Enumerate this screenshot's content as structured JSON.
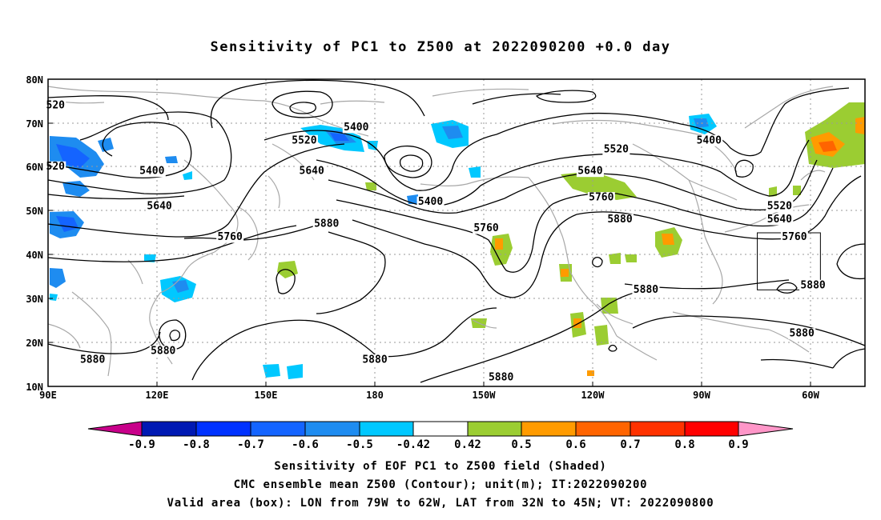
{
  "title": "Sensitivity of PC1 to Z500 at 2022090200 +0.0 day",
  "map": {
    "lat_labels": [
      "80N",
      "70N",
      "60N",
      "50N",
      "40N",
      "30N",
      "20N",
      "10N"
    ],
    "lon_labels": [
      "90E",
      "120E",
      "150E",
      "180",
      "150W",
      "120W",
      "90W",
      "60W"
    ],
    "contour_labels": [
      {
        "text": "520",
        "lon": 92,
        "lat": 74
      },
      {
        "text": "520",
        "lon": 92,
        "lat": 60
      },
      {
        "text": "5400",
        "lon": 118,
        "lat": 59
      },
      {
        "text": "5640",
        "lon": 120,
        "lat": 51
      },
      {
        "text": "5760",
        "lon": 139,
        "lat": 44
      },
      {
        "text": "5880",
        "lon": 121,
        "lat": 18
      },
      {
        "text": "5880",
        "lon": 102,
        "lat": 16
      },
      {
        "text": "5400",
        "lon": 173,
        "lat": 69
      },
      {
        "text": "5520",
        "lon": 159,
        "lat": 66
      },
      {
        "text": "5640",
        "lon": 161,
        "lat": 59
      },
      {
        "text": "5880",
        "lon": 165,
        "lat": 47
      },
      {
        "text": "5880",
        "lon": 178,
        "lat": 16
      },
      {
        "text": "5400",
        "lon": 193,
        "lat": 52
      },
      {
        "text": "5760",
        "lon": 208,
        "lat": 46
      },
      {
        "text": "5880",
        "lon": 212,
        "lat": 12
      },
      {
        "text": "5520",
        "lon": 243,
        "lat": 64
      },
      {
        "text": "5640",
        "lon": 236,
        "lat": 59
      },
      {
        "text": "5760",
        "lon": 239,
        "lat": 53
      },
      {
        "text": "5880",
        "lon": 244,
        "lat": 48
      },
      {
        "text": "5880",
        "lon": 251,
        "lat": 32
      },
      {
        "text": "5400",
        "lon": 268,
        "lat": 66
      },
      {
        "text": "5520",
        "lon": 287,
        "lat": 51
      },
      {
        "text": "5640",
        "lon": 287,
        "lat": 48
      },
      {
        "text": "5760",
        "lon": 291,
        "lat": 44
      },
      {
        "text": "5880",
        "lon": 296,
        "lat": 33
      },
      {
        "text": "5880",
        "lon": 293,
        "lat": 22
      }
    ],
    "valid_box": {
      "lon_min": -79,
      "lon_max": -62,
      "lat_min": 32,
      "lat_max": 45
    }
  },
  "colorbar": {
    "labels": [
      "-0.9",
      "-0.8",
      "-0.7",
      "-0.6",
      "-0.5",
      "-0.42",
      "0.42",
      "0.5",
      "0.6",
      "0.7",
      "0.8",
      "0.9"
    ],
    "colors": [
      "#c8008a",
      "#0019b3",
      "#0032ff",
      "#1464ff",
      "#1e8cf0",
      "#00c8ff",
      "#ffffff",
      "#9bcd32",
      "#ff9b00",
      "#ff6400",
      "#ff3200",
      "#ff0000",
      "#ff96c8"
    ]
  },
  "caption": {
    "line1": "Sensitivity of EOF PC1 to Z500 field (Shaded)",
    "line2": "CMC ensemble mean Z500 (Contour); unit(m); IT:2022090200",
    "line3": "Valid area (box): LON from 79W to 62W, LAT from 32N to 45N; VT: 2022090800"
  }
}
